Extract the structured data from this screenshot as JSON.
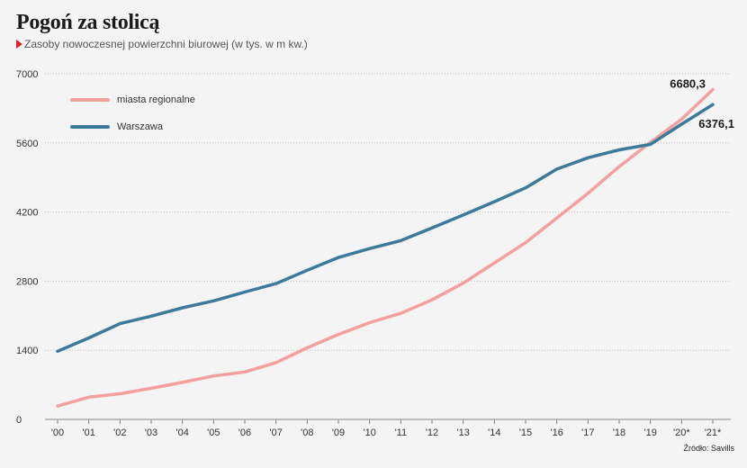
{
  "title": "Pogoń za stolicą",
  "subtitle": "Zasoby nowoczesnej powierzchni biurowej (w tys. w m kw.)",
  "source": "Źródło: Savills",
  "colors": {
    "regional": "#f4a09c",
    "warsaw": "#3b7a9a",
    "accent": "#e0242b"
  },
  "chart_data": {
    "type": "line",
    "categories": [
      "'00",
      "'01",
      "'02",
      "'03",
      "'04",
      "'05",
      "'06",
      "'07",
      "'08",
      "'09",
      "'10",
      "'11",
      "'12",
      "'13",
      "'14",
      "'15",
      "'16",
      "'17",
      "'18",
      "'19",
      "'20*",
      "'21*"
    ],
    "series": [
      {
        "name": "miasta regionalne",
        "values": [
          270,
          450,
          520,
          630,
          750,
          880,
          960,
          1150,
          1450,
          1720,
          1960,
          2150,
          2420,
          2760,
          3170,
          3580,
          4080,
          4580,
          5120,
          5610,
          6080,
          6680.3
        ]
      },
      {
        "name": "Warszawa",
        "values": [
          1380,
          1650,
          1940,
          2090,
          2260,
          2400,
          2580,
          2750,
          3020,
          3280,
          3460,
          3620,
          3880,
          4140,
          4410,
          4690,
          5070,
          5300,
          5460,
          5570,
          5980,
          6376.1
        ]
      }
    ],
    "yticks": [
      0,
      1400,
      2800,
      4200,
      5600,
      7000
    ],
    "ylim": [
      0,
      7000
    ],
    "labels": {
      "regional_last": "6680,3",
      "warsaw_last": "6376,1"
    },
    "legend_position": "top-left",
    "grid": true
  }
}
